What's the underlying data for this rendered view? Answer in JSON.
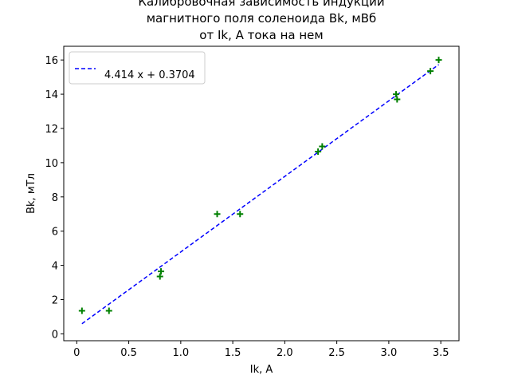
{
  "chart_data": {
    "type": "scatter",
    "title_lines": [
      "Калибровочная зависимость индукции",
      "магнитного поля соленоида Bk, мВб",
      "от Ik, А тока на нем"
    ],
    "xlabel": "Ik, A",
    "ylabel": "Bk, мТл",
    "xlim": [
      -0.125,
      3.675
    ],
    "ylim": [
      -0.4,
      16.8
    ],
    "xticks": [
      0,
      0.5,
      1.0,
      1.5,
      2.0,
      2.5,
      3.0,
      3.5
    ],
    "xtick_labels": [
      "0",
      "0.5",
      "1.0",
      "1.5",
      "2.0",
      "2.5",
      "3.0",
      "3.5"
    ],
    "yticks": [
      0,
      2,
      4,
      6,
      8,
      10,
      12,
      14,
      16
    ],
    "ytick_labels": [
      "0",
      "2",
      "4",
      "6",
      "8",
      "10",
      "12",
      "14",
      "16"
    ],
    "grid": false,
    "legend_position": "top-left",
    "scatter_color": "#008000",
    "fit_color": "#0000ff",
    "points": [
      {
        "x": 0.05,
        "y": 1.35
      },
      {
        "x": 0.31,
        "y": 1.35
      },
      {
        "x": 0.8,
        "y": 3.35
      },
      {
        "x": 0.81,
        "y": 3.65
      },
      {
        "x": 1.35,
        "y": 7.0
      },
      {
        "x": 1.57,
        "y": 7.0
      },
      {
        "x": 2.32,
        "y": 10.65
      },
      {
        "x": 2.36,
        "y": 10.95
      },
      {
        "x": 3.07,
        "y": 14.0
      },
      {
        "x": 3.08,
        "y": 13.7
      },
      {
        "x": 3.4,
        "y": 15.35
      },
      {
        "x": 3.48,
        "y": 16.0
      }
    ],
    "fit": {
      "slope": 4.414,
      "intercept": 0.3704,
      "x_range": [
        0.05,
        3.48
      ],
      "label": "4.414 x + 0.3704"
    }
  }
}
